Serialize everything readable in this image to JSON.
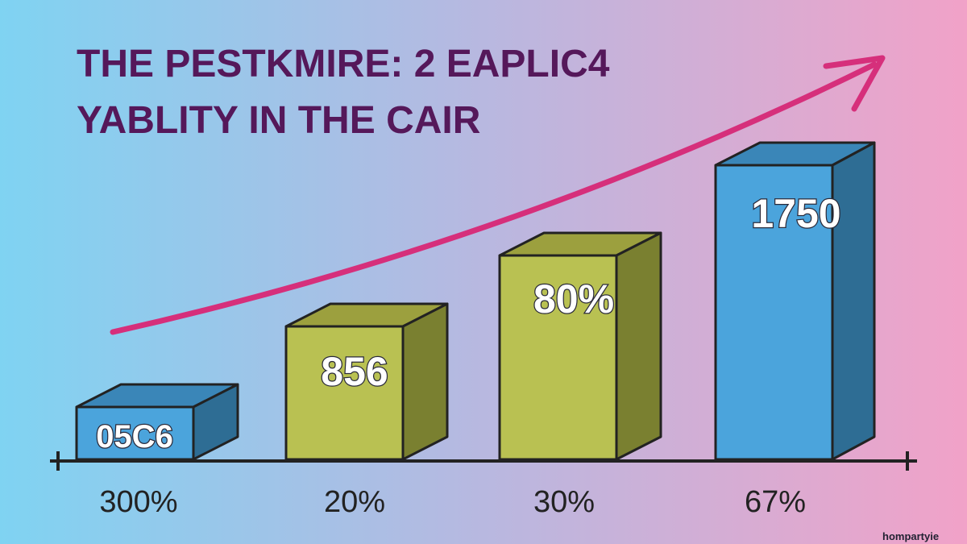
{
  "title": {
    "line1": "THE PESTKMIRE: 2 EAPLIC4",
    "line2": "YABLITY IN THE CAIR"
  },
  "bars": [
    {
      "label": "05C6",
      "caption": "300%"
    },
    {
      "label": "856",
      "caption": "20%"
    },
    {
      "label": "80%",
      "caption": "30%"
    },
    {
      "label": "1750",
      "caption": "67%"
    }
  ],
  "watermark": "hompartyie"
}
